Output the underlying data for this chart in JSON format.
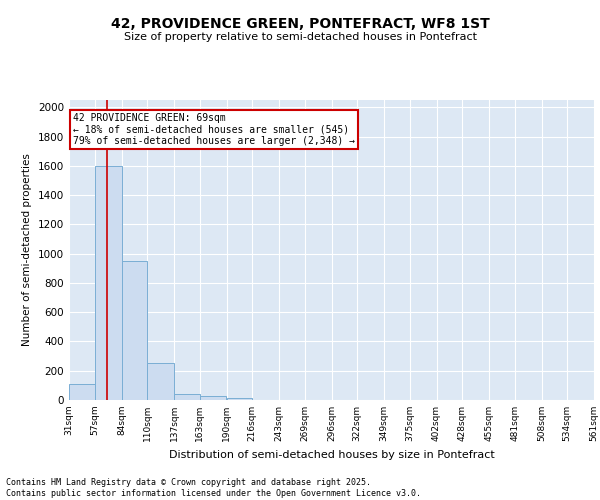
{
  "title": "42, PROVIDENCE GREEN, PONTEFRACT, WF8 1ST",
  "subtitle": "Size of property relative to semi-detached houses in Pontefract",
  "xlabel": "Distribution of semi-detached houses by size in Pontefract",
  "ylabel": "Number of semi-detached properties",
  "bar_edges": [
    31,
    57,
    84,
    110,
    137,
    163,
    190,
    216,
    243,
    269,
    296,
    322,
    349,
    375,
    402,
    428,
    455,
    481,
    508,
    534,
    561
  ],
  "bar_heights": [
    110,
    1600,
    950,
    255,
    40,
    25,
    15,
    0,
    0,
    0,
    0,
    0,
    0,
    0,
    0,
    0,
    0,
    0,
    0,
    0
  ],
  "bar_color": "#ccdcf0",
  "bar_edge_color": "#7aaed4",
  "subject_value": 69,
  "subject_line_color": "#cc0000",
  "annotation_text": "42 PROVIDENCE GREEN: 69sqm\n← 18% of semi-detached houses are smaller (545)\n79% of semi-detached houses are larger (2,348) →",
  "annotation_box_color": "white",
  "annotation_box_edge_color": "#cc0000",
  "ylim": [
    0,
    2050
  ],
  "background_color": "#dde8f4",
  "grid_color": "white",
  "footer_text": "Contains HM Land Registry data © Crown copyright and database right 2025.\nContains public sector information licensed under the Open Government Licence v3.0.",
  "tick_labels": [
    "31sqm",
    "57sqm",
    "84sqm",
    "110sqm",
    "137sqm",
    "163sqm",
    "190sqm",
    "216sqm",
    "243sqm",
    "269sqm",
    "296sqm",
    "322sqm",
    "349sqm",
    "375sqm",
    "402sqm",
    "428sqm",
    "455sqm",
    "481sqm",
    "508sqm",
    "534sqm",
    "561sqm"
  ],
  "yticks": [
    0,
    200,
    400,
    600,
    800,
    1000,
    1200,
    1400,
    1600,
    1800,
    2000
  ]
}
